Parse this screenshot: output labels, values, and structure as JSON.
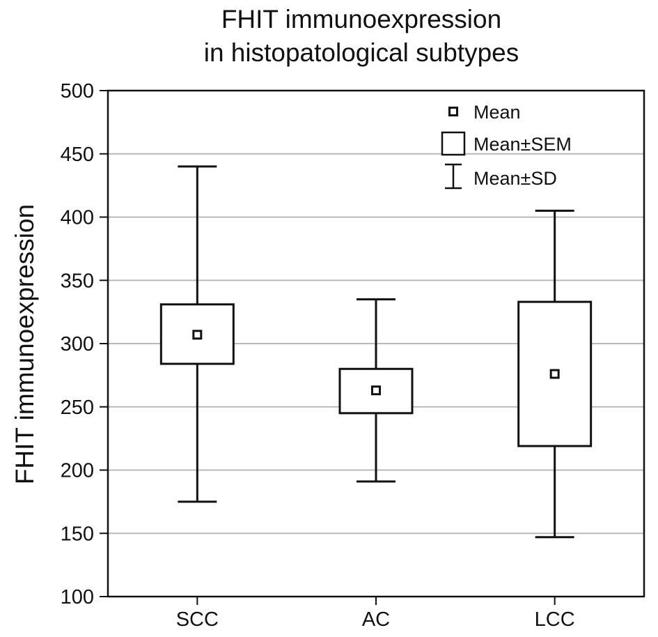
{
  "chart_data": {
    "type": "boxplot",
    "title": [
      "FHIT immunoexpression",
      "in histopatological subtypes"
    ],
    "xlabel": "",
    "ylabel": "FHIT immunoexpression",
    "ylim": [
      100,
      500
    ],
    "yticks": [
      100,
      150,
      200,
      250,
      300,
      350,
      400,
      450,
      500
    ],
    "grid": "horizontal",
    "legend_position": "top-right",
    "categories": [
      "SCC",
      "AC",
      "LCC"
    ],
    "groups": [
      {
        "category": "SCC",
        "mean": 307,
        "sem_low": 284,
        "sem_high": 331,
        "sd_low": 175,
        "sd_high": 440
      },
      {
        "category": "AC",
        "mean": 263,
        "sem_low": 245,
        "sem_high": 280,
        "sd_low": 191,
        "sd_high": 335
      },
      {
        "category": "LCC",
        "mean": 276,
        "sem_low": 219,
        "sem_high": 333,
        "sd_low": 147,
        "sd_high": 405
      }
    ],
    "legend": [
      {
        "symbol": "mean",
        "label": "Mean"
      },
      {
        "symbol": "box",
        "label": "Mean±SEM"
      },
      {
        "symbol": "whisker",
        "label": "Mean±SD"
      }
    ],
    "colors": {
      "line": "#111111",
      "grid": "#b9b9b9",
      "background": "#ffffff"
    }
  }
}
